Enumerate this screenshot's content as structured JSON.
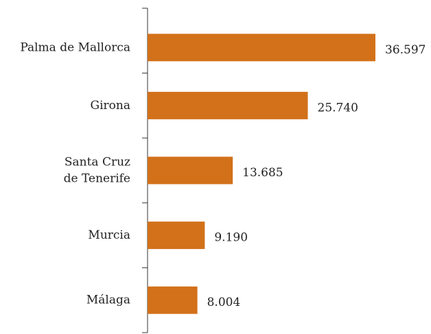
{
  "chart_data": {
    "type": "bar",
    "orientation": "horizontal",
    "categories": [
      "Palma de Mallorca",
      "Girona",
      "Santa Cruz\nde Tenerife",
      "Murcia",
      "Málaga"
    ],
    "values": [
      36597,
      25740,
      13685,
      9190,
      8004
    ],
    "value_labels": [
      "36.597",
      "25.740",
      "13.685",
      "9.190",
      "8.004"
    ],
    "color": "#d2711a"
  }
}
